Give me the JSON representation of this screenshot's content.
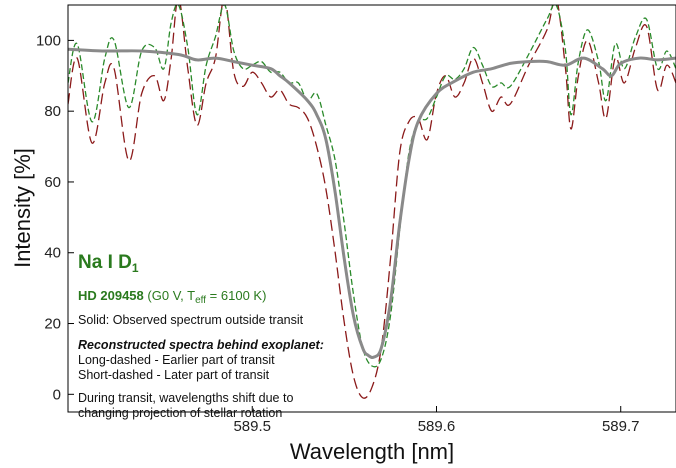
{
  "chart_data": {
    "type": "line",
    "xlabel": "Wavelength [nm]",
    "ylabel": "Intensity [%]",
    "xlim": [
      589.4,
      589.73
    ],
    "ylim": [
      -5,
      110
    ],
    "x_ticks": [
      589.5,
      589.6,
      589.7
    ],
    "y_ticks": [
      0,
      20,
      40,
      60,
      80,
      100
    ],
    "grid": false,
    "series": [
      {
        "name": "Solid: Observed spectrum outside transit",
        "style": "solid",
        "color": "#8a8a8a",
        "x": [
          589.4,
          589.42,
          589.44,
          589.46,
          589.47,
          589.48,
          589.49,
          589.5,
          589.51,
          589.515,
          589.52,
          589.53,
          589.535,
          589.54,
          589.545,
          589.55,
          589.555,
          589.56,
          589.563,
          589.566,
          589.57,
          589.575,
          589.58,
          589.585,
          589.59,
          589.6,
          589.61,
          589.62,
          589.63,
          589.64,
          589.65,
          589.66,
          589.67,
          589.68,
          589.69,
          589.695,
          589.7,
          589.71,
          589.72,
          589.73
        ],
        "y": [
          97.5,
          97,
          97,
          96,
          94.5,
          95,
          94,
          93,
          92,
          90,
          88,
          83,
          79,
          72,
          57,
          38,
          22,
          13,
          11,
          10.5,
          13,
          26,
          48,
          66,
          77,
          85,
          88.5,
          91,
          92,
          93.5,
          94,
          94,
          93,
          95,
          92,
          90,
          93.5,
          95,
          94.5,
          95
        ]
      },
      {
        "name": "Long-dashed - Earlier part of transit",
        "style": "long-dashed",
        "color": "#8b1a1a",
        "x": [
          589.4,
          589.405,
          589.413,
          589.42,
          589.425,
          589.433,
          589.44,
          589.447,
          589.452,
          589.456,
          589.46,
          589.465,
          589.47,
          589.475,
          589.48,
          589.485,
          589.49,
          589.495,
          589.5,
          589.505,
          589.51,
          589.515,
          589.52,
          589.525,
          589.53,
          589.535,
          589.54,
          589.545,
          589.55,
          589.555,
          589.56,
          589.565,
          589.57,
          589.575,
          589.58,
          589.585,
          589.59,
          589.595,
          589.6,
          589.605,
          589.61,
          589.615,
          589.62,
          589.625,
          589.63,
          589.635,
          589.64,
          589.65,
          589.66,
          589.665,
          589.67,
          589.673,
          589.677,
          589.682,
          589.688,
          589.692,
          589.697,
          589.702,
          589.708,
          589.714,
          589.72,
          589.725,
          589.73
        ],
        "y": [
          82,
          95,
          71,
          88,
          92,
          66,
          85,
          90,
          83,
          95,
          112,
          92,
          76,
          88,
          95,
          112,
          91,
          87,
          91,
          88,
          84,
          86,
          82,
          81,
          78,
          70,
          58,
          40,
          20,
          5,
          -1,
          2,
          13,
          38,
          68,
          77,
          78,
          72,
          85,
          90,
          84,
          88,
          95,
          88,
          80,
          84,
          82,
          93,
          103,
          112,
          92,
          75,
          90,
          100,
          88,
          78,
          95,
          88,
          98,
          104,
          86,
          93,
          88
        ]
      },
      {
        "name": "Short-dashed - Later part of transit",
        "style": "short-dashed",
        "color": "#2a8a2a",
        "x": [
          589.4,
          589.405,
          589.413,
          589.42,
          589.425,
          589.433,
          589.44,
          589.447,
          589.452,
          589.456,
          589.46,
          589.465,
          589.47,
          589.475,
          589.48,
          589.485,
          589.49,
          589.495,
          589.5,
          589.505,
          589.51,
          589.515,
          589.52,
          589.525,
          589.53,
          589.535,
          589.54,
          589.545,
          589.55,
          589.555,
          589.56,
          589.565,
          589.57,
          589.575,
          589.58,
          589.585,
          589.59,
          589.595,
          589.6,
          589.605,
          589.61,
          589.615,
          589.62,
          589.625,
          589.63,
          589.635,
          589.64,
          589.65,
          589.66,
          589.665,
          589.67,
          589.673,
          589.677,
          589.682,
          589.688,
          589.692,
          589.697,
          589.702,
          589.708,
          589.714,
          589.72,
          589.725,
          589.73
        ],
        "y": [
          88,
          99,
          77,
          95,
          100,
          81,
          97,
          98,
          92,
          105,
          110,
          98,
          79,
          93,
          101,
          110,
          97,
          92,
          93,
          94,
          91,
          91,
          88,
          88,
          83,
          85,
          76,
          66,
          48,
          28,
          13,
          8,
          10,
          22,
          46,
          68,
          77,
          78,
          84,
          90,
          89,
          92,
          98,
          93,
          87,
          88,
          87,
          96,
          106,
          110,
          97,
          79,
          94,
          103,
          94,
          83,
          99,
          92,
          101,
          106,
          92,
          97,
          92
        ]
      }
    ]
  },
  "legend": {
    "species": "Na I D",
    "species_sub": "1",
    "star_name": "HD 209458",
    "star_desc_pre": "(G0 V, T",
    "star_desc_sub": "eff",
    "star_desc_post": "= 6100 K)",
    "solid_text": "Solid: Observed spectrum outside transit",
    "heading": "Reconstructed spectra behind exoplanet:",
    "long_text": "Long-dashed - Earlier part of transit",
    "short_text": "Short-dashed - Later part of transit",
    "note_line1": "During transit, wavelengths shift due to",
    "note_line2": "changing projection of stellar rotation"
  }
}
